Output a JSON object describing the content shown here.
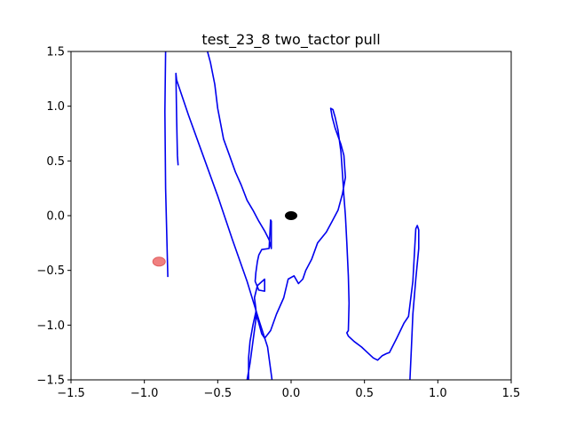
{
  "chart_data": {
    "type": "line",
    "title": "test_23_8 two_tactor pull",
    "xlabel": "",
    "ylabel": "",
    "xlim": [
      -1.5,
      1.5
    ],
    "ylim": [
      -1.5,
      1.5
    ],
    "grid": false,
    "x_ticks": [
      -1.5,
      -1.0,
      -0.5,
      0.0,
      0.5,
      1.0,
      1.5
    ],
    "y_ticks": [
      -1.5,
      -1.0,
      -0.5,
      0.0,
      0.5,
      1.0,
      1.5
    ],
    "x_tick_labels": [
      "−1.5",
      "−1.0",
      "−0.5",
      "0.0",
      "0.5",
      "1.0",
      "1.5"
    ],
    "y_tick_labels": [
      "−1.5",
      "−1.0",
      "−0.5",
      "0.0",
      "0.5",
      "1.0",
      "1.5"
    ],
    "series": [
      {
        "color": "#0000ee",
        "points": [
          [
            -0.84,
            -0.56
          ],
          [
            -0.855,
            0.25
          ],
          [
            -0.86,
            0.95
          ],
          [
            -0.855,
            1.5
          ]
        ]
      },
      {
        "color": "#0000ee",
        "points": [
          [
            -0.77,
            0.46
          ],
          [
            -0.775,
            0.55
          ],
          [
            -0.78,
            0.9
          ],
          [
            -0.785,
            1.3
          ],
          [
            -0.78,
            1.24
          ],
          [
            -0.7,
            0.92
          ],
          [
            -0.6,
            0.55
          ],
          [
            -0.5,
            0.18
          ],
          [
            -0.4,
            -0.22
          ],
          [
            -0.3,
            -0.6
          ],
          [
            -0.22,
            -0.95
          ],
          [
            -0.16,
            -1.2
          ],
          [
            -0.13,
            -1.5
          ]
        ]
      },
      {
        "color": "#0000ee",
        "points": [
          [
            -0.57,
            1.5
          ],
          [
            -0.55,
            1.4
          ],
          [
            -0.52,
            1.2
          ],
          [
            -0.5,
            0.98
          ],
          [
            -0.46,
            0.7
          ],
          [
            -0.42,
            0.55
          ],
          [
            -0.38,
            0.4
          ],
          [
            -0.34,
            0.28
          ],
          [
            -0.3,
            0.14
          ],
          [
            -0.26,
            0.05
          ],
          [
            -0.22,
            -0.05
          ],
          [
            -0.18,
            -0.14
          ],
          [
            -0.15,
            -0.22
          ],
          [
            -0.135,
            -0.3
          ],
          [
            -0.135,
            -0.05
          ],
          [
            -0.14,
            -0.04
          ],
          [
            -0.15,
            -0.3
          ],
          [
            -0.2,
            -0.31
          ],
          [
            -0.22,
            -0.36
          ],
          [
            -0.23,
            -0.42
          ],
          [
            -0.24,
            -0.52
          ],
          [
            -0.245,
            -0.6
          ],
          [
            -0.22,
            -0.68
          ],
          [
            -0.18,
            -0.69
          ],
          [
            -0.18,
            -0.58
          ],
          [
            -0.23,
            -0.64
          ],
          [
            -0.25,
            -0.75
          ],
          [
            -0.24,
            -0.85
          ],
          [
            -0.24,
            -0.9
          ],
          [
            -0.22,
            -0.98
          ],
          [
            -0.2,
            -1.08
          ],
          [
            -0.18,
            -1.12
          ],
          [
            -0.14,
            -1.05
          ],
          [
            -0.1,
            -0.9
          ],
          [
            -0.05,
            -0.75
          ],
          [
            -0.02,
            -0.58
          ],
          [
            0.02,
            -0.55
          ],
          [
            0.05,
            -0.62
          ],
          [
            0.08,
            -0.58
          ],
          [
            0.1,
            -0.5
          ],
          [
            0.14,
            -0.4
          ],
          [
            0.18,
            -0.25
          ],
          [
            0.24,
            -0.15
          ],
          [
            0.28,
            -0.05
          ],
          [
            0.32,
            0.05
          ],
          [
            0.35,
            0.2
          ],
          [
            0.37,
            0.35
          ],
          [
            0.36,
            0.55
          ],
          [
            0.34,
            0.65
          ],
          [
            0.3,
            0.8
          ],
          [
            0.28,
            0.9
          ],
          [
            0.27,
            0.98
          ],
          [
            0.285,
            0.97
          ],
          [
            0.3,
            0.9
          ],
          [
            0.32,
            0.78
          ],
          [
            0.34,
            0.58
          ],
          [
            0.35,
            0.38
          ],
          [
            0.36,
            0.18
          ],
          [
            0.37,
            0.0
          ],
          [
            0.38,
            -0.25
          ],
          [
            0.39,
            -0.55
          ],
          [
            0.395,
            -0.8
          ],
          [
            0.39,
            -1.05
          ],
          [
            0.38,
            -1.07
          ],
          [
            0.39,
            -1.1
          ],
          [
            0.43,
            -1.15
          ],
          [
            0.48,
            -1.2
          ],
          [
            0.52,
            -1.25
          ],
          [
            0.56,
            -1.3
          ],
          [
            0.59,
            -1.32
          ],
          [
            0.62,
            -1.28
          ],
          [
            0.65,
            -1.26
          ],
          [
            0.67,
            -1.25
          ],
          [
            0.72,
            -1.12
          ],
          [
            0.77,
            -0.98
          ],
          [
            0.8,
            -0.92
          ],
          [
            0.83,
            -0.6
          ],
          [
            0.85,
            -0.12
          ],
          [
            0.86,
            -0.09
          ],
          [
            0.87,
            -0.13
          ],
          [
            0.87,
            -0.3
          ],
          [
            0.85,
            -0.58
          ],
          [
            0.83,
            -0.9
          ],
          [
            0.82,
            -1.2
          ],
          [
            0.81,
            -1.5
          ]
        ]
      },
      {
        "color": "#0000ee",
        "points": [
          [
            -0.29,
            -1.5
          ],
          [
            -0.29,
            -1.3
          ],
          [
            -0.28,
            -1.15
          ],
          [
            -0.26,
            -1.0
          ],
          [
            -0.24,
            -0.88
          ],
          [
            -0.24,
            -0.95
          ],
          [
            -0.26,
            -1.15
          ],
          [
            -0.28,
            -1.35
          ],
          [
            -0.3,
            -1.5
          ]
        ]
      }
    ],
    "markers": [
      {
        "x": 0.0,
        "y": 0.0,
        "color": "#000000"
      },
      {
        "x": -0.9,
        "y": -0.42,
        "color": "#f08080"
      }
    ]
  }
}
